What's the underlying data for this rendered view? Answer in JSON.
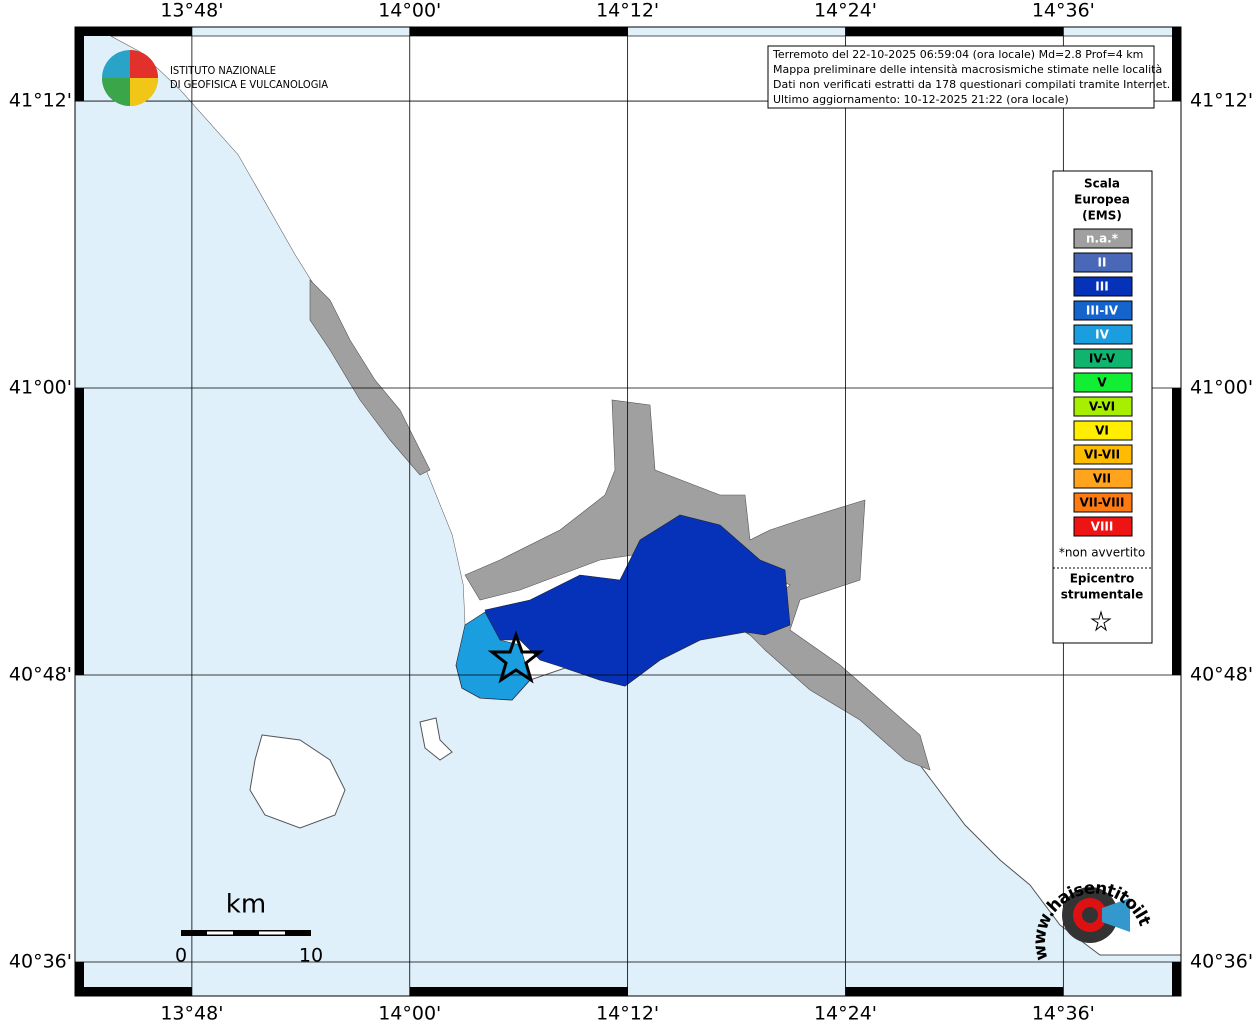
{
  "map": {
    "lon_range": [
      13.6927,
      14.708
    ],
    "lat_range": [
      40.5763,
      41.2516
    ],
    "lon_ticks": [
      {
        "value": 13.8,
        "label": "13°48'"
      },
      {
        "value": 14.0,
        "label": "14°00'"
      },
      {
        "value": 14.2,
        "label": "14°12'"
      },
      {
        "value": 14.4,
        "label": "14°24'"
      },
      {
        "value": 14.6,
        "label": "14°36'"
      }
    ],
    "lat_ticks": [
      {
        "value": 41.2,
        "label": "41°12'"
      },
      {
        "value": 41.0,
        "label": "41°00'"
      },
      {
        "value": 40.8,
        "label": "40°48'"
      },
      {
        "value": 40.6,
        "label": "40°36'"
      }
    ]
  },
  "logo": {
    "line1": "ISTITUTO NAZIONALE",
    "line2": "DI GEOFISICA E VULCANOLOGIA"
  },
  "info": [
    "Terremoto del 22-10-2025 06:59:04 (ora locale) Md=2.8 Prof=4 km",
    "Mappa preliminare delle intensità macrosismiche stimate nelle località",
    "Dati non verificati estratti da 178 questionari compilati tramite Internet.",
    "Ultimo aggiornamento: 10-12-2025 21:22 (ora locale)"
  ],
  "legend": {
    "title": [
      "Scala",
      "Europea",
      "(EMS)"
    ],
    "items": [
      {
        "label": "n.a.*",
        "color": "#a0a0a0"
      },
      {
        "label": "II",
        "color": "#4a68b8"
      },
      {
        "label": "III",
        "color": "#0532b8"
      },
      {
        "label": "III-IV",
        "color": "#1464cc"
      },
      {
        "label": "IV",
        "color": "#1a9ee0"
      },
      {
        "label": "IV-V",
        "color": "#0fb46e"
      },
      {
        "label": "V",
        "color": "#11ee33"
      },
      {
        "label": "V-VI",
        "color": "#a8ee00"
      },
      {
        "label": "VI",
        "color": "#ffee00"
      },
      {
        "label": "VI-VII",
        "color": "#ffbb00"
      },
      {
        "label": "VII",
        "color": "#ffa41c"
      },
      {
        "label": "VII-VIII",
        "color": "#ff7a10"
      },
      {
        "label": "VIII",
        "color": "#ee1414"
      }
    ],
    "note": "*non avvertito",
    "epicenter": [
      "Epicentro",
      "strumentale"
    ]
  },
  "scale": {
    "unit": "km",
    "start": "0",
    "end": "10"
  },
  "logo2": "www.haisentitoilterremoto.it"
}
